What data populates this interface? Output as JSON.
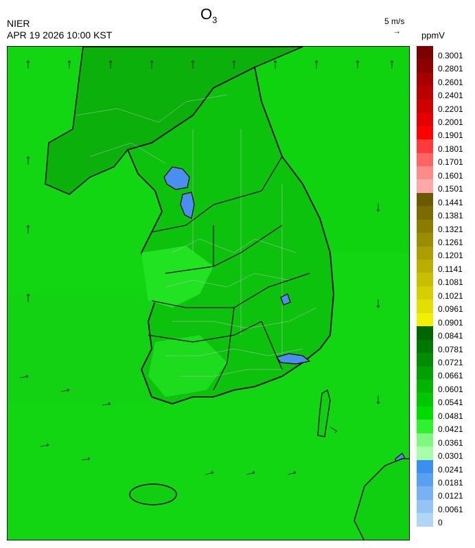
{
  "header": {
    "title_main": "O",
    "title_sub": "3",
    "org": "NIER",
    "datetime": "APR 19 2026 10:00 KST",
    "wind_reference": "5 m/s",
    "wind_reference_arrow": "→",
    "unit": "ppmV"
  },
  "colorbar": {
    "labels": [
      "0.3001",
      "0.2801",
      "0.2601",
      "0.2401",
      "0.2201",
      "0.2001",
      "0.1901",
      "0.1801",
      "0.1701",
      "0.1601",
      "0.1501",
      "0.1441",
      "0.1381",
      "0.1321",
      "0.1261",
      "0.1201",
      "0.1141",
      "0.1081",
      "0.1021",
      "0.0961",
      "0.0901",
      "0.0841",
      "0.0781",
      "0.0721",
      "0.0661",
      "0.0601",
      "0.0541",
      "0.0481",
      "0.0421",
      "0.0361",
      "0.0301",
      "0.0241",
      "0.0181",
      "0.0121",
      "0.0061",
      "0"
    ],
    "colors": [
      "#7a0000",
      "#8e0000",
      "#a60000",
      "#bb0000",
      "#d10000",
      "#e40000",
      "#ff0000",
      "#ff3a3a",
      "#ff6464",
      "#ff8a8a",
      "#ffa8a8",
      "#6b5a00",
      "#7b6b00",
      "#8b7c00",
      "#9b8d00",
      "#aa9e00",
      "#baae00",
      "#c8bf00",
      "#d6cf00",
      "#e3df00",
      "#f2f000",
      "#006400",
      "#007800",
      "#008c00",
      "#00a000",
      "#00b400",
      "#00c800",
      "#00dc00",
      "#30f030",
      "#80f880",
      "#a8ffa8",
      "#3a8ff0",
      "#5aa0f0",
      "#78b2f2",
      "#94c4f4",
      "#b0d6f6"
    ]
  }
}
